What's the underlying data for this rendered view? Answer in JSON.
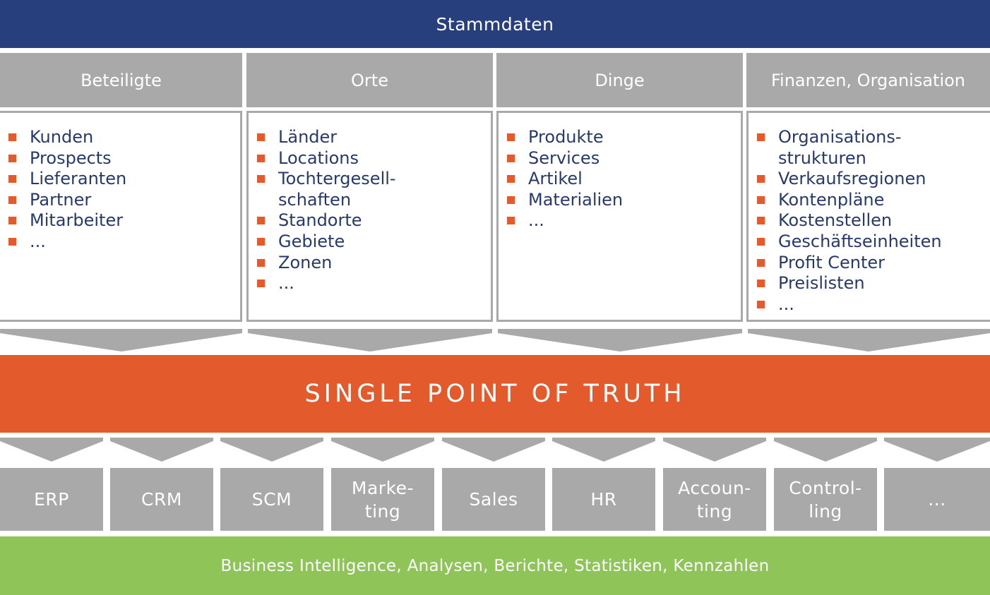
{
  "colors": {
    "header_blue": "#273f7d",
    "gray": "#a9a9a9",
    "orange": "#e35b2c",
    "green": "#8fc458",
    "text_blue": "#273a6b"
  },
  "header": {
    "title": "Stammdaten"
  },
  "categories": [
    {
      "title": "Beteiligte",
      "items": [
        "Kunden",
        "Prospects",
        "Lieferanten",
        "Partner",
        "Mitarbeiter",
        "..."
      ]
    },
    {
      "title": "Orte",
      "items": [
        "Länder",
        "Locations",
        "Tochtergesell-\nschaften",
        "Standorte",
        "Gebiete",
        "Zonen",
        "..."
      ]
    },
    {
      "title": "Dinge",
      "items": [
        "Produkte",
        "Services",
        "Artikel",
        "Materialien",
        "..."
      ]
    },
    {
      "title": "Finanzen, Organisation",
      "items": [
        "Organisations-\nstrukturen",
        "Verkaufsregionen",
        "Kontenpläne",
        "Kostenstellen",
        "Geschäftseinheiten",
        "Profit Center",
        "Preislisten",
        "..."
      ]
    }
  ],
  "center": {
    "label": "SINGLE POINT OF TRUTH"
  },
  "systems": [
    "ERP",
    "CRM",
    "SCM",
    "Marke-\nting",
    "Sales",
    "HR",
    "Accoun-\nting",
    "Control-\nling",
    "..."
  ],
  "footer": {
    "label": "Business Intelligence, Analysen, Berichte, Statistiken, Kennzahlen"
  }
}
